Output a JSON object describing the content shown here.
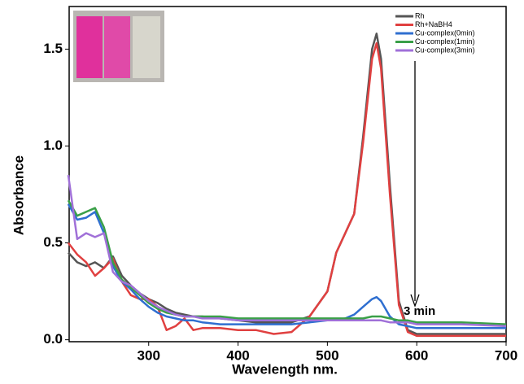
{
  "chart_data": {
    "type": "line",
    "xlabel": "Wavelength nm.",
    "ylabel": "Absorbance",
    "annotation": "3 min",
    "x": [
      210,
      220,
      230,
      240,
      250,
      260,
      270,
      280,
      290,
      300,
      310,
      320,
      330,
      340,
      350,
      360,
      380,
      400,
      420,
      440,
      460,
      480,
      500,
      510,
      520,
      530,
      540,
      550,
      555,
      560,
      570,
      580,
      590,
      600,
      620,
      650,
      700
    ],
    "series": [
      {
        "name": "Rh",
        "color": "#555555",
        "values": [
          0.45,
          0.4,
          0.38,
          0.4,
          0.37,
          0.43,
          0.33,
          0.28,
          0.24,
          0.21,
          0.19,
          0.16,
          0.14,
          0.13,
          0.12,
          0.12,
          0.11,
          0.1,
          0.09,
          0.09,
          0.09,
          0.12,
          0.25,
          0.45,
          0.55,
          0.65,
          1.05,
          1.5,
          1.58,
          1.45,
          0.8,
          0.2,
          0.05,
          0.03,
          0.03,
          0.03,
          0.03
        ]
      },
      {
        "name": "Rh+NaBH4",
        "color": "#e04040",
        "values": [
          0.5,
          0.44,
          0.4,
          0.33,
          0.37,
          0.42,
          0.3,
          0.23,
          0.21,
          0.21,
          0.17,
          0.05,
          0.07,
          0.11,
          0.05,
          0.06,
          0.06,
          0.05,
          0.05,
          0.03,
          0.04,
          0.12,
          0.25,
          0.45,
          0.55,
          0.65,
          1.02,
          1.45,
          1.53,
          1.4,
          0.75,
          0.18,
          0.04,
          0.02,
          0.02,
          0.02,
          0.02
        ]
      },
      {
        "name": "Cu-complex(0min)",
        "color": "#2f6fd0",
        "values": [
          0.7,
          0.62,
          0.63,
          0.66,
          0.55,
          0.38,
          0.3,
          0.26,
          0.21,
          0.17,
          0.14,
          0.12,
          0.11,
          0.1,
          0.1,
          0.09,
          0.08,
          0.08,
          0.08,
          0.08,
          0.08,
          0.09,
          0.1,
          0.1,
          0.11,
          0.13,
          0.17,
          0.21,
          0.22,
          0.2,
          0.12,
          0.08,
          0.07,
          0.06,
          0.06,
          0.06,
          0.06
        ]
      },
      {
        "name": "Cu-complex(1min)",
        "color": "#3aa048",
        "values": [
          0.72,
          0.64,
          0.66,
          0.68,
          0.58,
          0.4,
          0.31,
          0.27,
          0.23,
          0.19,
          0.16,
          0.14,
          0.13,
          0.12,
          0.12,
          0.12,
          0.12,
          0.11,
          0.11,
          0.11,
          0.11,
          0.11,
          0.11,
          0.11,
          0.11,
          0.11,
          0.11,
          0.12,
          0.12,
          0.12,
          0.11,
          0.1,
          0.1,
          0.09,
          0.09,
          0.09,
          0.08
        ]
      },
      {
        "name": "Cu-complex(3min)",
        "color": "#a070d8",
        "values": [
          0.85,
          0.52,
          0.55,
          0.53,
          0.55,
          0.35,
          0.3,
          0.28,
          0.24,
          0.2,
          0.17,
          0.15,
          0.13,
          0.12,
          0.12,
          0.11,
          0.11,
          0.1,
          0.1,
          0.1,
          0.1,
          0.1,
          0.1,
          0.1,
          0.1,
          0.1,
          0.1,
          0.1,
          0.1,
          0.1,
          0.09,
          0.09,
          0.09,
          0.08,
          0.08,
          0.08,
          0.07
        ]
      }
    ],
    "xlim": [
      211,
      700
    ],
    "xticks": [
      300,
      400,
      500,
      600,
      700
    ],
    "ylim": [
      -0.01,
      1.72
    ],
    "yticks": [
      {
        "value": 0,
        "label": "0.0"
      },
      0.5,
      {
        "value": 1,
        "label": "1.0"
      },
      1.5
    ],
    "legend": "upper right"
  }
}
